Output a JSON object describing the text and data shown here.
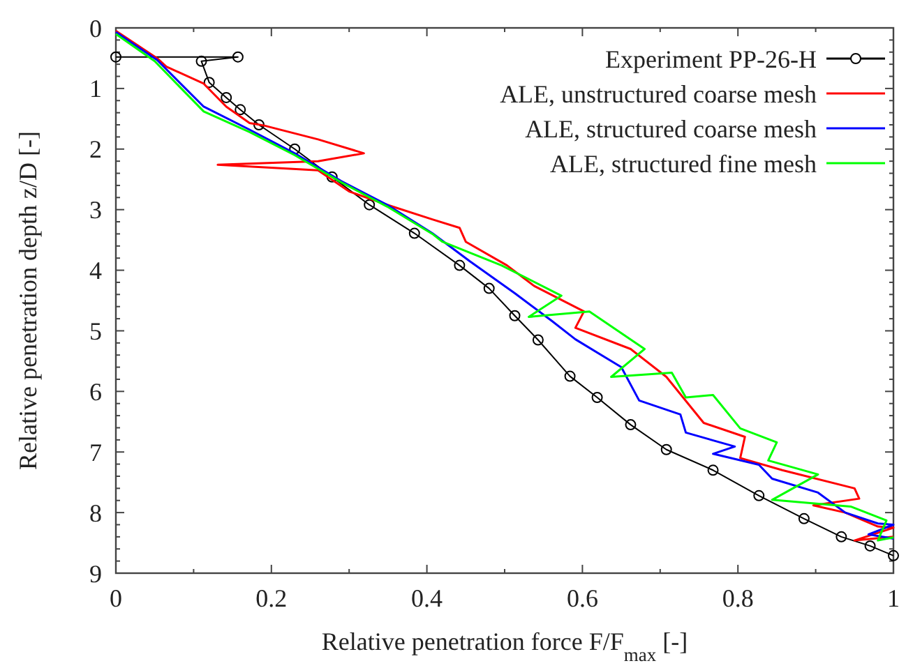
{
  "chart_data": {
    "type": "line",
    "xlabel": "Relative penetration force F/F$_{max}$ [-]",
    "ylabel": "Relative penetration depth z/D [-]",
    "xlim": [
      0,
      1
    ],
    "xticks": [
      0,
      0.2,
      0.4,
      0.6,
      0.8,
      1
    ],
    "ylim": [
      9,
      0
    ],
    "yticks": [
      0,
      1,
      2,
      3,
      4,
      5,
      6,
      7,
      8,
      9
    ],
    "grid": false,
    "legend": "top right",
    "series": [
      {
        "name": "Experiment PP-26-H",
        "color": "#000000",
        "marker": "circle",
        "x": [
          0,
          0.157,
          0.11,
          0.12,
          0.142,
          0.16,
          0.184,
          0.23,
          0.278,
          0.326,
          0.384,
          0.442,
          0.48,
          0.513,
          0.543,
          0.584,
          0.619,
          0.662,
          0.708,
          0.768,
          0.827,
          0.885,
          0.933,
          0.97,
          1.0
        ],
        "values": [
          0.48,
          0.48,
          0.55,
          0.9,
          1.15,
          1.35,
          1.6,
          2.0,
          2.46,
          2.92,
          3.39,
          3.92,
          4.3,
          4.75,
          5.15,
          5.75,
          6.1,
          6.55,
          6.96,
          7.3,
          7.72,
          8.1,
          8.4,
          8.55,
          8.71
        ]
      },
      {
        "name": "ALE, unstructured coarse mesh",
        "color": "#ff0000",
        "marker": "none",
        "x": [
          0,
          0.053,
          0.065,
          0.113,
          0.142,
          0.172,
          0.19,
          0.26,
          0.319,
          0.26,
          0.131,
          0.26,
          0.3,
          0.349,
          0.407,
          0.442,
          0.45,
          0.503,
          0.538,
          0.602,
          0.591,
          0.662,
          0.708,
          0.756,
          0.809,
          0.803,
          0.857,
          0.95,
          0.956,
          0.897,
          0.938,
          0.98,
          1.0,
          0.95,
          1.0
        ],
        "values": [
          0.05,
          0.5,
          0.64,
          0.92,
          1.3,
          1.57,
          1.61,
          1.84,
          2.07,
          2.2,
          2.26,
          2.35,
          2.7,
          2.92,
          3.16,
          3.3,
          3.53,
          3.92,
          4.26,
          4.68,
          4.95,
          5.3,
          5.76,
          6.52,
          6.75,
          7.1,
          7.3,
          7.6,
          7.77,
          7.88,
          8.0,
          8.23,
          8.25,
          8.46,
          8.4
        ]
      },
      {
        "name": "ALE, structured coarse mesh",
        "color": "#0000ff",
        "marker": "none",
        "x": [
          0,
          0.053,
          0.113,
          0.172,
          0.23,
          0.29,
          0.349,
          0.407,
          0.455,
          0.513,
          0.561,
          0.591,
          0.65,
          0.673,
          0.726,
          0.733,
          0.796,
          0.768,
          0.827,
          0.844,
          0.903,
          0.938,
          0.98,
          1.0,
          0.968,
          1.0
        ],
        "values": [
          0.07,
          0.53,
          1.3,
          1.68,
          2.07,
          2.53,
          2.92,
          3.39,
          3.85,
          4.38,
          4.84,
          5.14,
          5.6,
          6.15,
          6.38,
          6.68,
          6.91,
          7.03,
          7.21,
          7.44,
          7.67,
          8.0,
          8.18,
          8.2,
          8.36,
          8.43
        ]
      },
      {
        "name": "ALE, structured fine mesh",
        "color": "#00ff00",
        "marker": "none",
        "x": [
          0,
          0.05,
          0.113,
          0.172,
          0.23,
          0.29,
          0.349,
          0.407,
          0.42,
          0.496,
          0.573,
          0.531,
          0.609,
          0.68,
          0.637,
          0.715,
          0.733,
          0.768,
          0.803,
          0.85,
          0.839,
          0.903,
          0.844,
          0.945,
          0.991,
          0.98,
          1.0
        ],
        "values": [
          0.1,
          0.55,
          1.38,
          1.72,
          2.1,
          2.55,
          2.95,
          3.4,
          3.53,
          3.92,
          4.42,
          4.77,
          4.68,
          5.3,
          5.76,
          5.69,
          6.1,
          6.06,
          6.61,
          6.84,
          7.14,
          7.37,
          7.79,
          7.9,
          8.13,
          8.46,
          8.41
        ]
      }
    ]
  }
}
